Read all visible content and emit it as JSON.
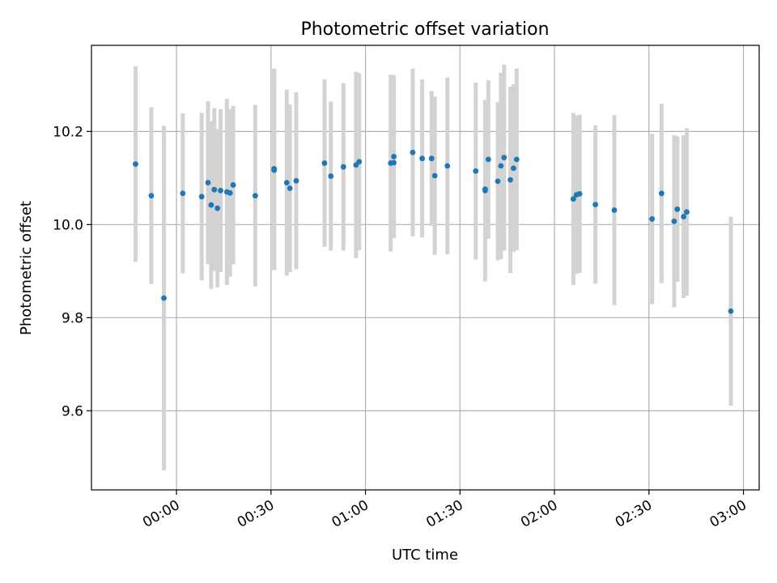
{
  "chart_data": {
    "type": "scatter",
    "title": "Photometric offset variation",
    "xlabel": "UTC time",
    "ylabel": "Photometric offset",
    "grid": true,
    "x_format": "HH:MM",
    "xlim": [
      "23:33",
      "03:05"
    ],
    "ylim": [
      9.43,
      10.385
    ],
    "x_ticks": [
      "00:00",
      "00:30",
      "01:00",
      "01:30",
      "02:00",
      "02:30",
      "03:00"
    ],
    "y_ticks": [
      9.6,
      9.8,
      10.0,
      10.2
    ],
    "y_tick_labels": [
      "9.6",
      "9.8",
      "10.0",
      "10.2"
    ],
    "colors": {
      "marker": "#1f77b4",
      "errorbar": "#d3d3d3"
    },
    "series": [
      {
        "x": [
          "23:47",
          "23:52",
          "23:56",
          "00:02",
          "00:08",
          "00:10",
          "00:11",
          "00:12",
          "00:13",
          "00:14",
          "00:16",
          "00:17",
          "00:18",
          "00:25",
          "00:31",
          "00:31",
          "00:35",
          "00:36",
          "00:38",
          "00:47",
          "00:49",
          "00:53",
          "00:57",
          "00:58",
          "01:08",
          "01:09",
          "01:09",
          "01:15",
          "01:18",
          "01:21",
          "01:22",
          "01:26",
          "01:35",
          "01:38",
          "01:38",
          "01:39",
          "01:42",
          "01:43",
          "01:44",
          "01:46",
          "01:47",
          "01:48",
          "02:06",
          "02:07",
          "02:08",
          "02:13",
          "02:19",
          "02:31",
          "02:34",
          "02:38",
          "02:39",
          "02:39",
          "02:41",
          "02:42",
          "02:56"
        ],
        "y": [
          10.13,
          10.062,
          9.842,
          10.067,
          10.06,
          10.09,
          10.042,
          10.075,
          10.035,
          10.073,
          10.07,
          10.068,
          10.085,
          10.062,
          10.12,
          10.117,
          10.09,
          10.078,
          10.094,
          10.132,
          10.104,
          10.124,
          10.128,
          10.135,
          10.132,
          10.146,
          10.133,
          10.155,
          10.142,
          10.142,
          10.105,
          10.126,
          10.115,
          10.073,
          10.076,
          10.14,
          10.093,
          10.126,
          10.144,
          10.096,
          10.121,
          10.14,
          10.055,
          10.064,
          10.066,
          10.043,
          10.031,
          10.012,
          10.067,
          10.007,
          10.033,
          10.033,
          10.017,
          10.027,
          9.814
        ],
        "yerr": [
          0.21,
          0.19,
          0.37,
          0.172,
          0.18,
          0.175,
          0.18,
          0.175,
          0.17,
          0.175,
          0.2,
          0.18,
          0.17,
          0.195,
          0.215,
          0.215,
          0.2,
          0.18,
          0.19,
          0.18,
          0.16,
          0.18,
          0.2,
          0.19,
          0.19,
          0.175,
          0.16,
          0.18,
          0.17,
          0.145,
          0.17,
          0.19,
          0.19,
          0.195,
          0.165,
          0.17,
          0.17,
          0.2,
          0.2,
          0.2,
          0.18,
          0.195,
          0.185,
          0.17,
          0.17,
          0.17,
          0.204,
          0.183,
          0.193,
          0.185,
          0.156,
          0.156,
          0.175,
          0.18,
          0.203
        ]
      }
    ]
  }
}
